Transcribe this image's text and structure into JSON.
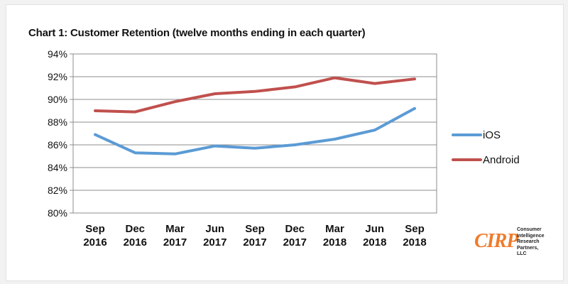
{
  "chart_data": {
    "type": "line",
    "title": "Chart 1: Customer Retention (twelve months ending in each quarter)",
    "xlabel": "",
    "ylabel": "",
    "categories": [
      [
        "Sep",
        "2016"
      ],
      [
        "Dec",
        "2016"
      ],
      [
        "Mar",
        "2017"
      ],
      [
        "Jun",
        "2017"
      ],
      [
        "Sep",
        "2017"
      ],
      [
        "Dec",
        "2017"
      ],
      [
        "Mar",
        "2018"
      ],
      [
        "Jun",
        "2018"
      ],
      [
        "Sep",
        "2018"
      ]
    ],
    "yticks": [
      "80%",
      "82%",
      "84%",
      "86%",
      "88%",
      "90%",
      "92%",
      "94%"
    ],
    "ylim": [
      80,
      94
    ],
    "grid": true,
    "legend_position": "right",
    "series": [
      {
        "name": "iOS",
        "color": "#5b9bd5",
        "values": [
          86.9,
          85.3,
          85.2,
          85.9,
          85.7,
          86.0,
          86.5,
          87.3,
          89.2
        ]
      },
      {
        "name": "Android",
        "color": "#c0504d",
        "values": [
          89.0,
          88.9,
          89.8,
          90.5,
          90.7,
          91.1,
          91.9,
          91.4,
          91.8
        ]
      }
    ]
  },
  "logo": {
    "main": "CIRP",
    "sub_lines": [
      "Consumer",
      "Intelligence",
      "Research",
      "Partners, LLC"
    ]
  }
}
